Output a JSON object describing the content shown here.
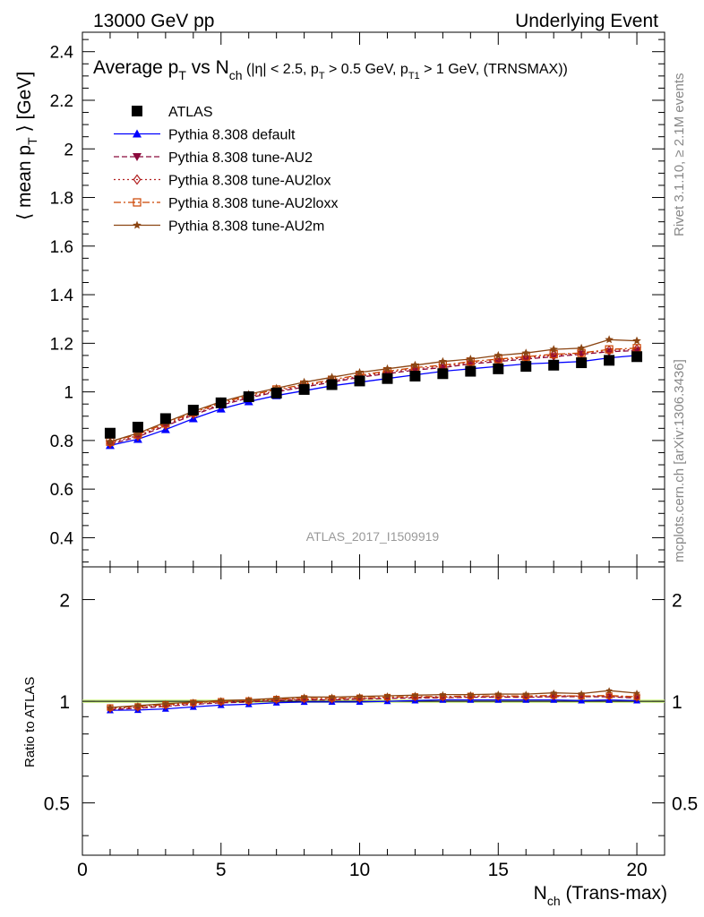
{
  "header": {
    "left": "13000 GeV pp",
    "right": "Underlying Event"
  },
  "side": {
    "rivet": "Rivet 3.1.10, ≥ 2.1M events",
    "mcplots": "mcplots.cern.ch [arXiv:1306.3436]"
  },
  "chart_data": {
    "type": "scatter",
    "title": "Average p_T vs N_ch (|η| < 2.5, p_T > 0.5 GeV, p_T1 > 1 GeV, (TRNSMAX))",
    "title_parts": {
      "a": "Average p",
      "a_sub": "T",
      "b": " vs N",
      "b_sub": "ch",
      "c": " (|η| < 2.5, p",
      "c_sub": "T",
      "d": " > 0.5 GeV, p",
      "d_sub": "T1",
      "e": " > 1 GeV, (TRNSMAX))"
    },
    "analysis_label": "ATLAS_2017_I1509919",
    "ylabel": "⟨ mean p_T ⟩ [GeV]",
    "ylabel_parts": {
      "a": "⟨ mean p",
      "sub": "T",
      "b": " ⟩ [GeV]"
    },
    "ratio_ylabel": "Ratio to ATLAS",
    "xlabel": "N_ch (Trans-max)",
    "xlabel_parts": {
      "a": "N",
      "sub": "ch",
      "b": " (Trans-max)"
    },
    "xlim": [
      0,
      21
    ],
    "ylim": [
      0.28,
      2.48
    ],
    "ratio_ylim": [
      0.35,
      2.5
    ],
    "x_ticks": [
      "0",
      "5",
      "10",
      "15",
      "20"
    ],
    "y_ticks": [
      "0.4",
      "0.6",
      "0.8",
      "1",
      "1.2",
      "1.4",
      "1.6",
      "1.8",
      "2",
      "2.2",
      "2.4"
    ],
    "ratio_ticks": [
      "0.5",
      "1",
      "2"
    ],
    "legend_position": "top-left",
    "x": [
      1,
      2,
      3,
      4,
      5,
      6,
      7,
      8,
      9,
      10,
      11,
      12,
      13,
      14,
      15,
      16,
      17,
      18,
      19,
      20
    ],
    "series": [
      {
        "name": "ATLAS",
        "color": "#000000",
        "marker": "square",
        "values": [
          0.83,
          0.855,
          0.89,
          0.925,
          0.955,
          0.98,
          0.995,
          1.01,
          1.03,
          1.045,
          1.055,
          1.065,
          1.075,
          1.085,
          1.095,
          1.105,
          1.11,
          1.12,
          1.13,
          1.145
        ]
      },
      {
        "name": "Pythia 8.308 default",
        "color": "#0000ff",
        "marker": "triangle-up",
        "dash": "solid",
        "values": [
          0.78,
          0.805,
          0.845,
          0.89,
          0.93,
          0.96,
          0.985,
          1.005,
          1.025,
          1.04,
          1.055,
          1.07,
          1.085,
          1.095,
          1.105,
          1.115,
          1.12,
          1.125,
          1.14,
          1.15
        ]
      },
      {
        "name": "Pythia 8.308 tune-AU2",
        "color": "#8b0a3c",
        "marker": "triangle-down",
        "dash": "dashed",
        "values": [
          0.785,
          0.815,
          0.86,
          0.905,
          0.945,
          0.975,
          1.0,
          1.02,
          1.04,
          1.06,
          1.075,
          1.09,
          1.1,
          1.115,
          1.125,
          1.135,
          1.145,
          1.155,
          1.165,
          1.17
        ]
      },
      {
        "name": "Pythia 8.308 tune-AU2lox",
        "color": "#b22222",
        "marker": "diamond-open",
        "dash": "dotted",
        "values": [
          0.79,
          0.82,
          0.865,
          0.91,
          0.95,
          0.98,
          1.005,
          1.025,
          1.045,
          1.065,
          1.08,
          1.095,
          1.105,
          1.12,
          1.13,
          1.14,
          1.15,
          1.16,
          1.17,
          1.175
        ]
      },
      {
        "name": "Pythia 8.308 tune-AU2loxx",
        "color": "#cc4400",
        "marker": "square-open",
        "dash": "dashdot",
        "values": [
          0.795,
          0.825,
          0.87,
          0.915,
          0.955,
          0.985,
          1.01,
          1.03,
          1.05,
          1.07,
          1.085,
          1.1,
          1.11,
          1.125,
          1.135,
          1.145,
          1.155,
          1.16,
          1.175,
          1.18
        ]
      },
      {
        "name": "Pythia 8.308 tune-AU2m",
        "color": "#8b4513",
        "marker": "star",
        "dash": "solid",
        "values": [
          0.795,
          0.83,
          0.875,
          0.92,
          0.96,
          0.99,
          1.015,
          1.04,
          1.06,
          1.08,
          1.095,
          1.11,
          1.125,
          1.135,
          1.15,
          1.16,
          1.175,
          1.18,
          1.215,
          1.21
        ]
      }
    ]
  }
}
